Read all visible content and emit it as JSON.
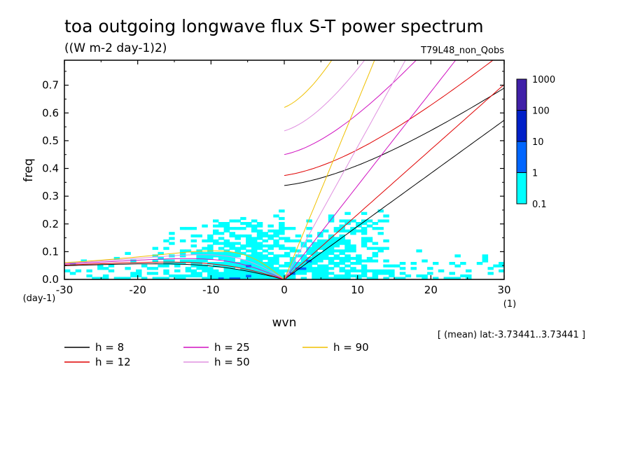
{
  "chart_data": {
    "type": "heatmap",
    "title": "toa outgoing longwave flux S-T power spectrum",
    "subtitle": "((W m-2 day-1)2)",
    "run_label": "T79L48_non_Qobs",
    "xlabel": "wvn",
    "ylabel": "freq",
    "x_unit": "(1)",
    "y_unit": "(day-1)",
    "xlim": [
      -30,
      30
    ],
    "ylim": [
      0,
      0.79
    ],
    "x_ticks": [
      -30,
      -20,
      -10,
      0,
      10,
      20,
      30
    ],
    "y_ticks": [
      0.0,
      0.1,
      0.2,
      0.3,
      0.4,
      0.5,
      0.6,
      0.7
    ],
    "x_tick_labels": [
      "-30",
      "-20",
      "-10",
      "0",
      "10",
      "20",
      "30"
    ],
    "y_tick_labels": [
      "0.0",
      "0.1",
      "0.2",
      "0.3",
      "0.4",
      "0.5",
      "0.6",
      "0.7"
    ],
    "color_levels": [
      0.1,
      1,
      10,
      100,
      1000
    ],
    "color_level_labels": [
      "0.1",
      "1",
      "10",
      "100",
      "1000"
    ],
    "colors": [
      "#00ffff",
      "#0066ff",
      "#0020c8",
      "#4020a8"
    ],
    "region_note": "[ (mean) lat:-3.73441..3.73441 ]",
    "dispersion_curves": [
      {
        "label": "h =  8",
        "h": 8,
        "color": "#000000"
      },
      {
        "label": "h = 12",
        "h": 12,
        "color": "#e00000"
      },
      {
        "label": "h = 25",
        "h": 25,
        "color": "#d010c0"
      },
      {
        "label": "h = 50",
        "h": 50,
        "color": "#e090e0"
      },
      {
        "label": "h = 90",
        "h": 90,
        "color": "#f0c000"
      }
    ]
  }
}
